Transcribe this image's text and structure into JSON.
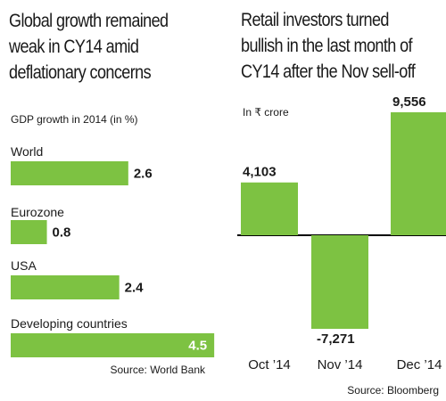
{
  "left_panel": {
    "title_lines": [
      "Global growth remained",
      "weak in CY14 amid",
      "deflationary concerns"
    ],
    "subtitle": "GDP growth in 2014 (in %)",
    "source": "Source: World Bank"
  },
  "right_panel": {
    "title_lines": [
      "Retail investors turned",
      "bullish in the last month of",
      "CY14 after the Nov sell-off"
    ],
    "subtitle": "In ₹ crore",
    "source": "Source: Bloomberg"
  },
  "chart_data": [
    {
      "type": "bar",
      "orientation": "horizontal",
      "title": "Global growth remained weak in CY14 amid deflationary concerns",
      "subtitle": "GDP growth in 2014 (in %)",
      "categories": [
        "World",
        "Eurozone",
        "USA",
        "Developing countries"
      ],
      "values": [
        2.6,
        0.8,
        2.4,
        4.5
      ],
      "value_labels": [
        "2.6",
        "0.8",
        "2.4",
        "4.5"
      ],
      "bar_color": "#7dc242",
      "grid": false,
      "source": "Source: World Bank"
    },
    {
      "type": "bar",
      "orientation": "vertical",
      "title": "Retail investors turned bullish in the last month of CY14 after the Nov sell-off",
      "ylabel": "In ₹ crore",
      "categories": [
        "Oct ’14",
        "Nov ’14",
        "Dec ’14"
      ],
      "values": [
        4103,
        -7271,
        9556
      ],
      "value_labels": [
        "4,103",
        "-7,271",
        "9,556"
      ],
      "bar_color": "#7dc242",
      "zero_line": true,
      "grid": false,
      "source": "Source: Bloomberg"
    }
  ],
  "colors": {
    "bar": "#7dc242",
    "text": "#1a1a1a",
    "axis": "#000000"
  }
}
